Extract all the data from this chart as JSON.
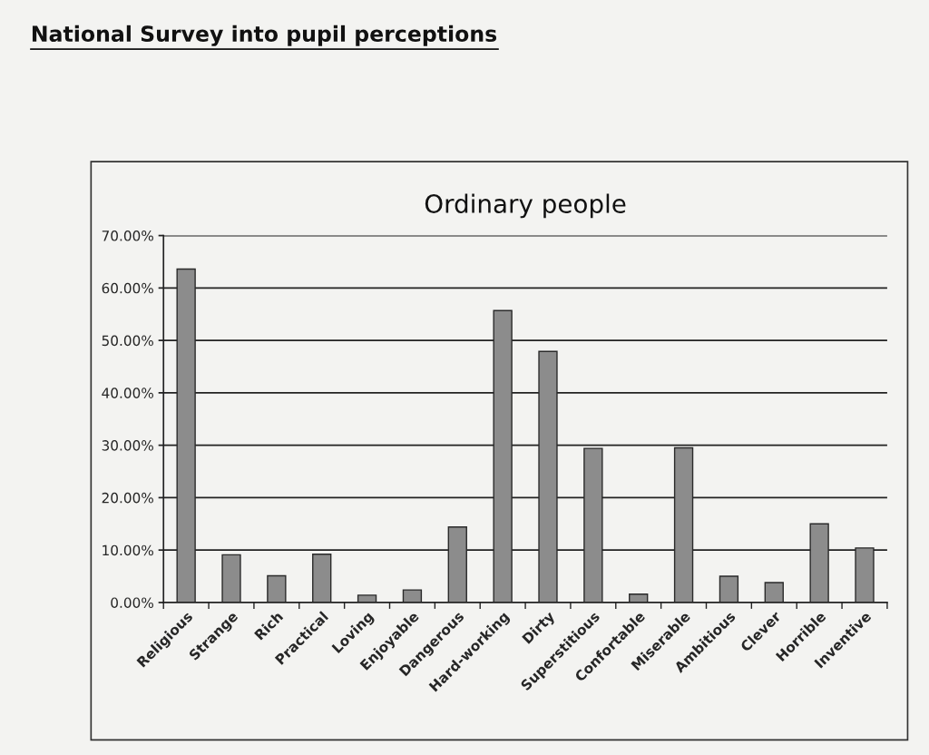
{
  "chart_data": {
    "type": "bar",
    "title": "National Survey into pupil perceptions",
    "subtitle": "Ordinary people",
    "categories": [
      "Religious",
      "Strange",
      "Rich",
      "Practical",
      "Loving",
      "Enjoyable",
      "Dangerous",
      "Hard-working",
      "Dirty",
      "Superstitious",
      "Confortable",
      "Miserable",
      "Ambitious",
      "Clever",
      "Horrible",
      "Inventive"
    ],
    "values": [
      63.6,
      9.1,
      5.1,
      9.2,
      1.4,
      2.4,
      14.4,
      55.7,
      47.9,
      29.4,
      1.6,
      29.5,
      5.0,
      3.8,
      15.0,
      10.4
    ],
    "color": "#8c8c8c",
    "ylim": [
      0,
      70
    ],
    "yticks": [
      {
        "value": 0,
        "label": "0.00%"
      },
      {
        "value": 10,
        "label": "10.00%"
      },
      {
        "value": 20,
        "label": "20.00%"
      },
      {
        "value": 30,
        "label": "30.00%"
      },
      {
        "value": 40,
        "label": "40.00%"
      },
      {
        "value": 50,
        "label": "50.00%"
      },
      {
        "value": 60,
        "label": "60.00%"
      },
      {
        "value": 70,
        "label": "70.00%"
      }
    ],
    "grid": "y"
  }
}
